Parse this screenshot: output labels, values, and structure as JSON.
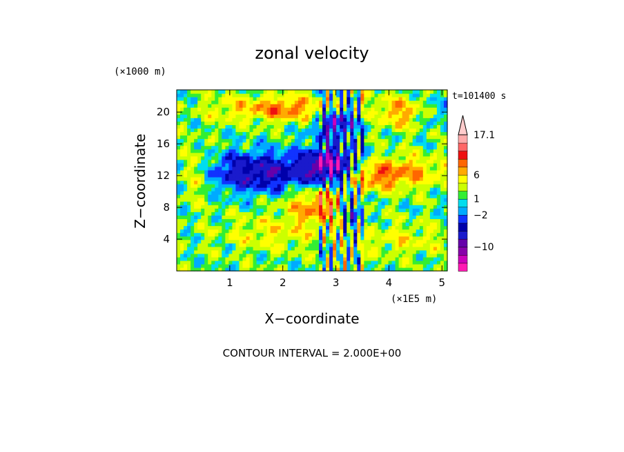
{
  "chart_data": {
    "type": "heatmap",
    "title": "zonal velocity",
    "xlabel": "X−coordinate",
    "ylabel": "Z−coordinate",
    "x_unit": "(×1E5 m)",
    "y_unit": "(×1000 m)",
    "time_label": "t=101400 s",
    "footer": "CONTOUR INTERVAL = 2.000E+00",
    "xlim": [
      0,
      5.1
    ],
    "ylim": [
      0,
      22.8
    ],
    "x_ticks": [
      "1",
      "2",
      "3",
      "4",
      "5"
    ],
    "y_ticks": [
      "4",
      "8",
      "12",
      "16",
      "20"
    ],
    "x_tick_values": [
      1,
      2,
      3,
      4,
      5
    ],
    "y_tick_values": [
      4,
      8,
      12,
      16,
      20
    ],
    "contour_interval": 2.0,
    "colorbar": {
      "levels": [
        -16,
        -14,
        -12,
        -10,
        -8,
        -6,
        -4,
        -2,
        0,
        1,
        2,
        4,
        6,
        8,
        10,
        12,
        14,
        17.1
      ],
      "colors": [
        "#ff1ab3",
        "#cc00bb",
        "#8800aa",
        "#6600aa",
        "#1a1acc",
        "#0000aa",
        "#1133ff",
        "#00aaff",
        "#00ddee",
        "#33ee33",
        "#ccff00",
        "#ffff00",
        "#ffaa00",
        "#ff6600",
        "#ee1111",
        "#ff6666",
        "#ffaaaa"
      ],
      "labels": [
        {
          "text": "17.1",
          "value": 17.1
        },
        {
          "text": "6",
          "value": 6
        },
        {
          "text": "1",
          "value": 1
        },
        {
          "text": "−2",
          "value": -2
        },
        {
          "text": "−10",
          "value": -10
        }
      ],
      "overflow_arrow": "top"
    },
    "features": [
      {
        "x": 1.5,
        "z": 12.5,
        "sx": 1.2,
        "sz": 2.4,
        "value": -9,
        "desc": "westward jet core"
      },
      {
        "x": 2.9,
        "z": 13.5,
        "sx": 0.5,
        "sz": 2.2,
        "value": -11
      },
      {
        "x": 3.7,
        "z": 12.0,
        "sx": 0.5,
        "sz": 1.8,
        "value": 6
      },
      {
        "x": 4.4,
        "z": 12.5,
        "sx": 0.7,
        "sz": 2.0,
        "value": 5
      },
      {
        "x": 2.7,
        "z": 8.3,
        "sx": 0.6,
        "sz": 2.2,
        "value": 7
      },
      {
        "x": 1.8,
        "z": 4.8,
        "sx": 1.0,
        "sz": 2.2,
        "value": 3
      },
      {
        "x": 0.4,
        "z": 12.5,
        "sx": 0.4,
        "sz": 3.0,
        "value": 5
      },
      {
        "x": 1.3,
        "z": 20.5,
        "sx": 0.8,
        "sz": 1.6,
        "value": 4
      },
      {
        "x": 2.2,
        "z": 20.5,
        "sx": 0.6,
        "sz": 1.6,
        "value": 6
      },
      {
        "x": 3.0,
        "z": 18.5,
        "sx": 0.4,
        "sz": 2.0,
        "value": -9
      },
      {
        "x": 4.3,
        "z": 20.0,
        "sx": 0.6,
        "sz": 2.0,
        "value": 6
      },
      {
        "x": 4.8,
        "z": 20.0,
        "sx": 0.4,
        "sz": 2.0,
        "value": -4
      },
      {
        "x": 4.3,
        "z": 4.0,
        "sx": 0.8,
        "sz": 2.0,
        "value": 3
      },
      {
        "x": 3.3,
        "z": 7.5,
        "sx": 0.2,
        "sz": 2.0,
        "value": -7
      }
    ]
  }
}
